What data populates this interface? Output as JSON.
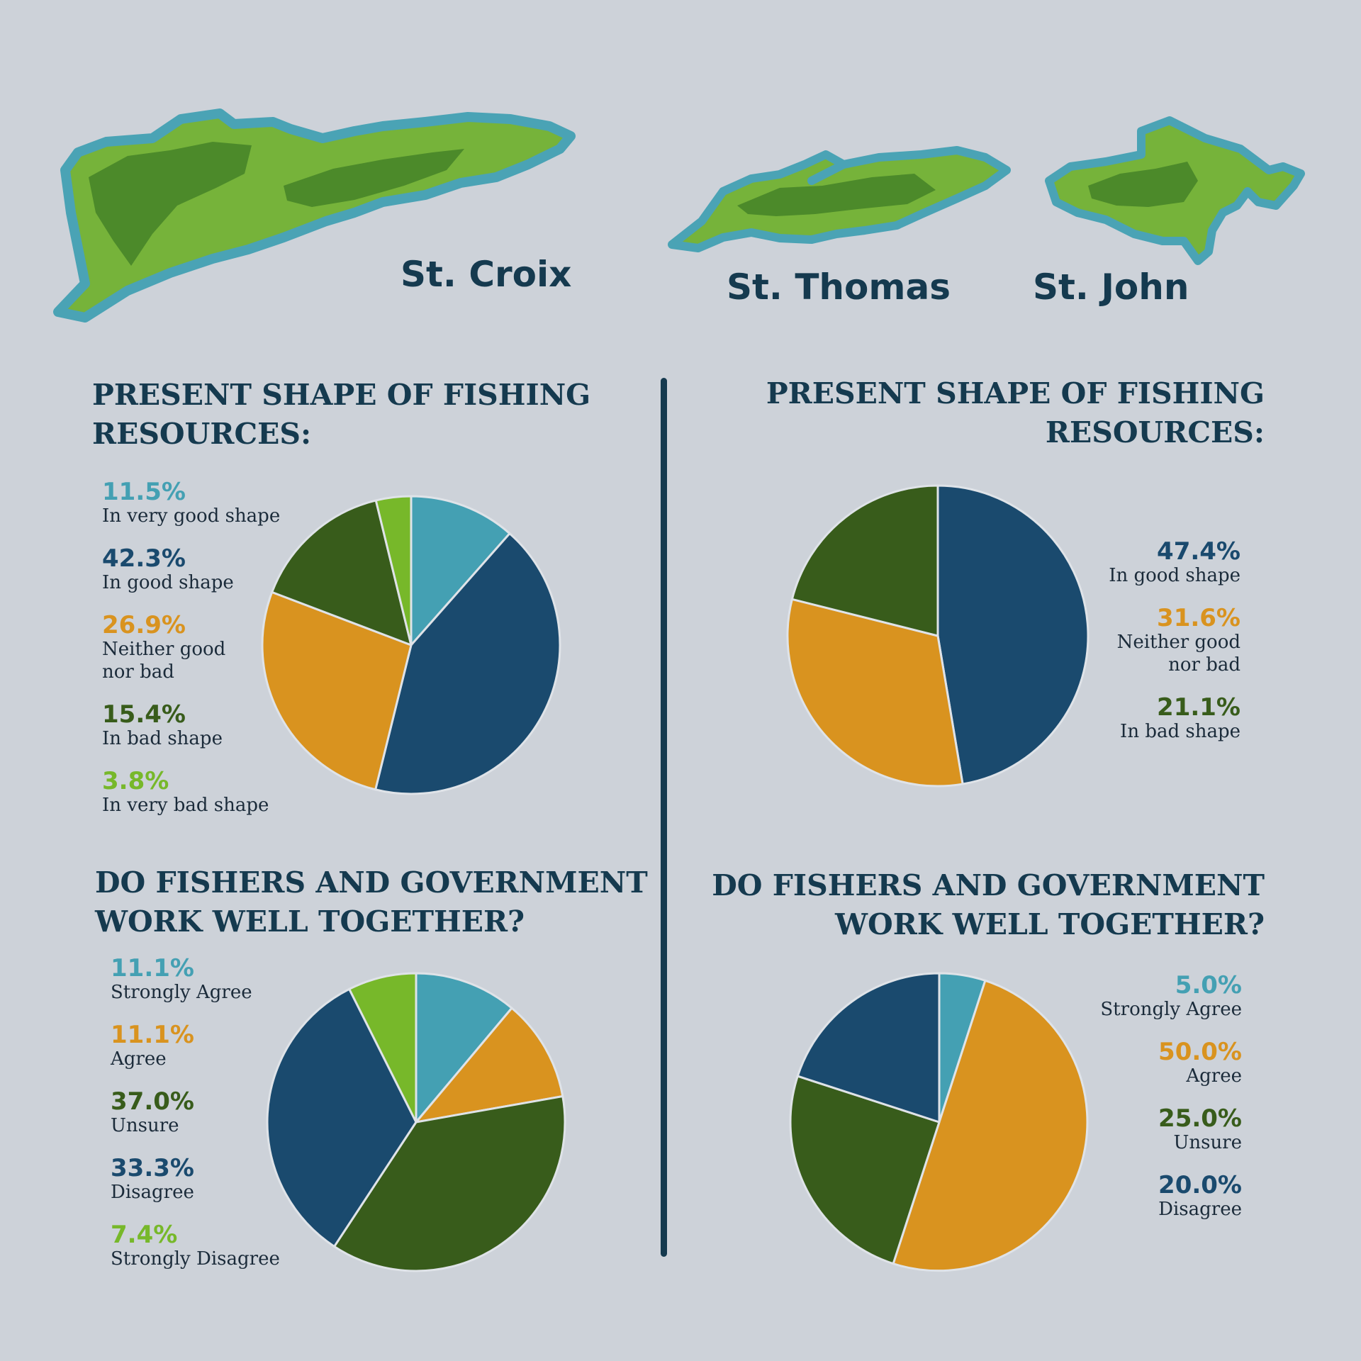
{
  "colors": {
    "background": "#cdd2d9",
    "text_dark": "#153a4f",
    "very_good_strongly_agree": "#44a0b3",
    "good_disagree": "#1a4a6e",
    "neither_agree": "#d9931f",
    "bad_unsure": "#385c1b",
    "very_bad_strongly_disagree": "#77b82a",
    "island_land": "#76b33a",
    "island_highland": "#4c8a2a",
    "island_coast": "#4aa3b5"
  },
  "islands": {
    "st_croix": "St. Croix",
    "st_thomas": "St. Thomas",
    "st_john": "St. John"
  },
  "chart_data": [
    {
      "type": "pie",
      "title": "PRESENT SHAPE OF FISHING RESOURCES:",
      "title_lines": [
        "PRESENT SHAPE OF FISHING",
        "RESOURCES:"
      ],
      "slices": [
        {
          "pct_label": "11.5%",
          "label": "In very good shape",
          "value": 11.5,
          "color": "#44a0b3"
        },
        {
          "pct_label": "42.3%",
          "label": "In good shape",
          "value": 42.3,
          "color": "#1a4a6e"
        },
        {
          "pct_label": "26.9%",
          "label": "Neither good\nnor bad",
          "value": 26.9,
          "color": "#d9931f"
        },
        {
          "pct_label": "15.4%",
          "label": "In bad shape",
          "value": 15.4,
          "color": "#385c1b"
        },
        {
          "pct_label": "3.8%",
          "label": "In very bad shape",
          "value": 3.8,
          "color": "#77b82a"
        }
      ]
    },
    {
      "type": "pie",
      "title": "PRESENT SHAPE OF FISHING RESOURCES:",
      "title_lines": [
        "PRESENT SHAPE OF FISHING",
        "RESOURCES:"
      ],
      "slices": [
        {
          "pct_label": "47.4%",
          "label": "In good shape",
          "value": 47.4,
          "color": "#1a4a6e"
        },
        {
          "pct_label": "31.6%",
          "label": "Neither good\nnor bad",
          "value": 31.6,
          "color": "#d9931f"
        },
        {
          "pct_label": "21.1%",
          "label": "In bad shape",
          "value": 21.1,
          "color": "#385c1b"
        }
      ]
    },
    {
      "type": "pie",
      "title": "DO FISHERS AND GOVERNMENT WORK WELL TOGETHER?",
      "title_lines": [
        "DO FISHERS AND GOVERNMENT",
        "WORK WELL TOGETHER?"
      ],
      "slices": [
        {
          "pct_label": "11.1%",
          "label": "Strongly Agree",
          "value": 11.1,
          "color": "#44a0b3"
        },
        {
          "pct_label": "11.1%",
          "label": "Agree",
          "value": 11.1,
          "color": "#d9931f"
        },
        {
          "pct_label": "37.0%",
          "label": "Unsure",
          "value": 37.0,
          "color": "#385c1b"
        },
        {
          "pct_label": "33.3%",
          "label": "Disagree",
          "value": 33.3,
          "color": "#1a4a6e"
        },
        {
          "pct_label": "7.4%",
          "label": "Strongly Disagree",
          "value": 7.4,
          "color": "#77b82a"
        }
      ]
    },
    {
      "type": "pie",
      "title": "DO FISHERS AND GOVERNMENT WORK WELL TOGETHER?",
      "title_lines": [
        "DO FISHERS AND GOVERNMENT",
        "WORK WELL TOGETHER?"
      ],
      "slices": [
        {
          "pct_label": "5.0%",
          "label": "Strongly Agree",
          "value": 5.0,
          "color": "#44a0b3"
        },
        {
          "pct_label": "50.0%",
          "label": "Agree",
          "value": 50.0,
          "color": "#d9931f"
        },
        {
          "pct_label": "25.0%",
          "label": "Unsure",
          "value": 25.0,
          "color": "#385c1b"
        },
        {
          "pct_label": "20.0%",
          "label": "Disagree",
          "value": 20.0,
          "color": "#1a4a6e"
        }
      ]
    }
  ]
}
